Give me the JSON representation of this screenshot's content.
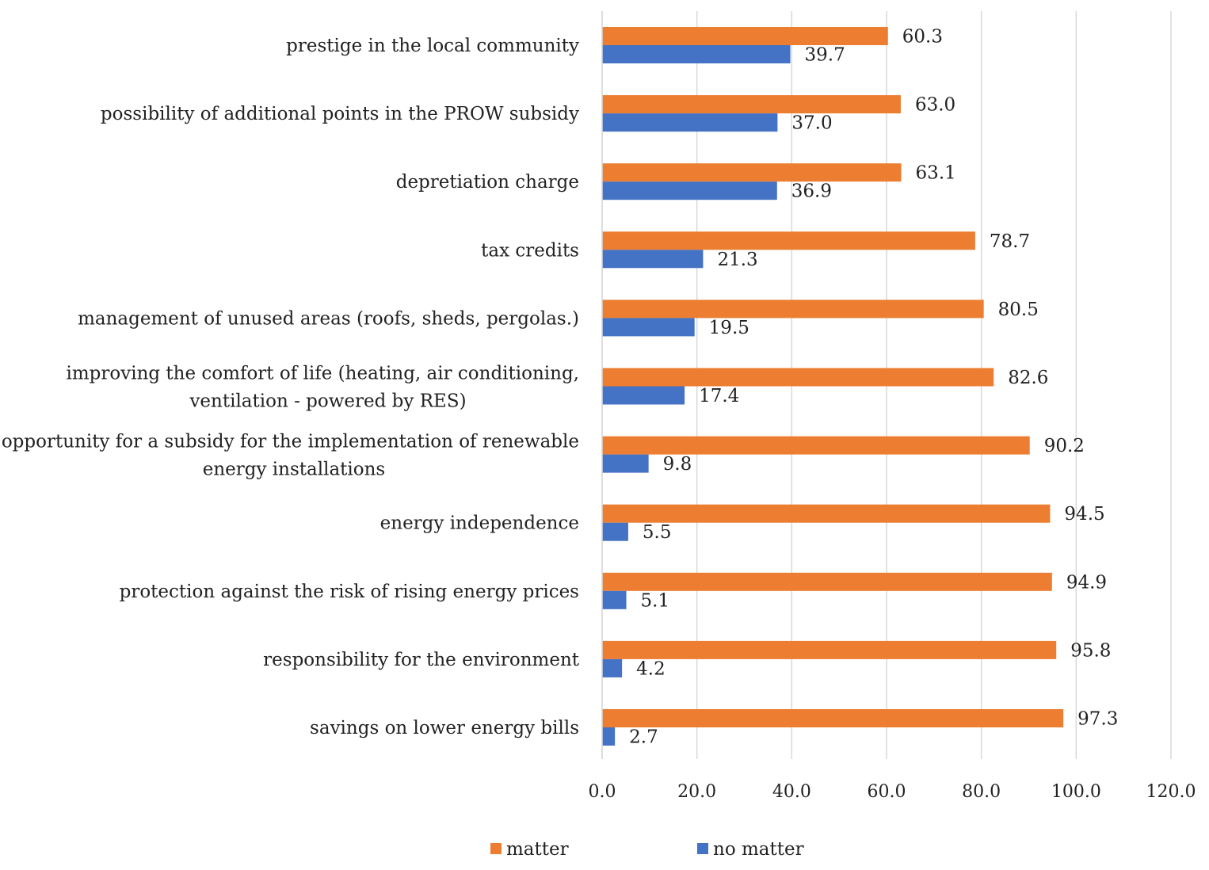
{
  "chart_data": {
    "type": "bar",
    "orientation": "horizontal",
    "title": "",
    "xlabel": "",
    "ylabel": "",
    "xlim": [
      0,
      120
    ],
    "x_ticks": [
      "0.0",
      "20.0",
      "40.0",
      "60.0",
      "80.0",
      "100.0",
      "120.0"
    ],
    "grid": true,
    "legend_position": "bottom",
    "categories": [
      [
        "prestige in the local community"
      ],
      [
        "possibility of additional points in the PROW subsidy"
      ],
      [
        "depretiation charge"
      ],
      [
        "tax credits"
      ],
      [
        "management of unused areas (roofs, sheds, pergolas.)"
      ],
      [
        "improving the comfort of life (heating, air conditioning,",
        "ventilation - powered by RES)"
      ],
      [
        "opportunity for a subsidy for the implementation of renewable",
        "energy installations"
      ],
      [
        "energy independence"
      ],
      [
        "protection against the risk of rising energy prices"
      ],
      [
        "responsibility for the environment"
      ],
      [
        "savings on lower energy bills"
      ]
    ],
    "series": [
      {
        "name": "matter",
        "color": "#ED7D31",
        "values": [
          60.3,
          63.0,
          63.1,
          78.7,
          80.5,
          82.6,
          90.2,
          94.5,
          94.9,
          95.8,
          97.3
        ],
        "labels": [
          "60.3",
          "63.0",
          "63.1",
          "78.7",
          "80.5",
          "82.6",
          "90.2",
          "94.5",
          "94.9",
          "95.8",
          "97.3"
        ]
      },
      {
        "name": "no matter",
        "color": "#4472C4",
        "values": [
          39.7,
          37.0,
          36.9,
          21.3,
          19.5,
          17.4,
          9.8,
          5.5,
          5.1,
          4.2,
          2.7
        ],
        "labels": [
          "39.7",
          "37.0",
          "36.9",
          "21.3",
          "19.5",
          "17.4",
          "9.8",
          "5.5",
          "5.1",
          "4.2",
          "2.7"
        ]
      }
    ]
  }
}
